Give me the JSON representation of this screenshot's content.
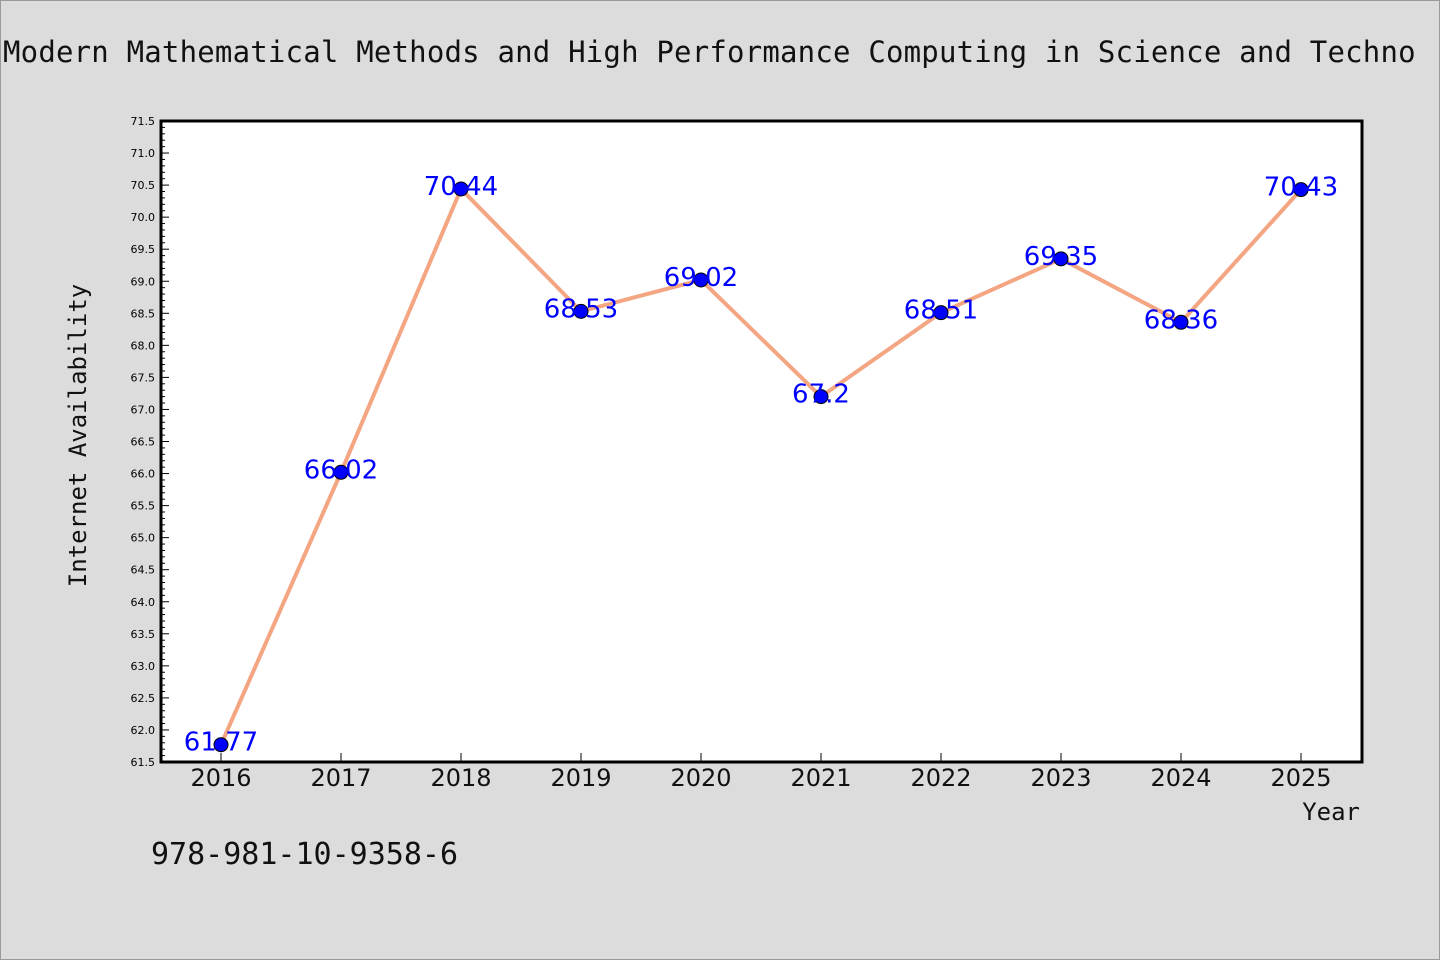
{
  "title": "Modern Mathematical Methods and High Performance Computing in Science and Techno",
  "isbn": "978-981-10-9358-6",
  "colors": {
    "background": "#dcdcdc",
    "plot_area": "#ffffff",
    "line": "#f4a582",
    "marker": "#0000ff",
    "data_label": "#0000ff"
  },
  "chart_data": {
    "type": "line",
    "xlabel": "Year",
    "ylabel": "Internet Availability",
    "categories": [
      "2016",
      "2017",
      "2018",
      "2019",
      "2020",
      "2021",
      "2022",
      "2023",
      "2024",
      "2025"
    ],
    "values": [
      61.77,
      66.02,
      70.44,
      68.53,
      69.02,
      67.2,
      68.51,
      69.35,
      68.36,
      70.43
    ],
    "data_labels": [
      "61.77",
      "66.02",
      "70.44",
      "68.53",
      "69.02",
      "67.2",
      "68.51",
      "69.35",
      "68.36",
      "70.43"
    ],
    "ylim": [
      61.5,
      71.5
    ],
    "yticks": [
      "61.5",
      "62.0",
      "62.5",
      "63.0",
      "63.5",
      "64.0",
      "64.5",
      "65.0",
      "65.5",
      "66.0",
      "66.5",
      "67.0",
      "67.5",
      "68.0",
      "68.5",
      "69.0",
      "69.5",
      "70.0",
      "70.5",
      "71.0",
      "71.5"
    ],
    "grid": false,
    "legend": "none"
  }
}
